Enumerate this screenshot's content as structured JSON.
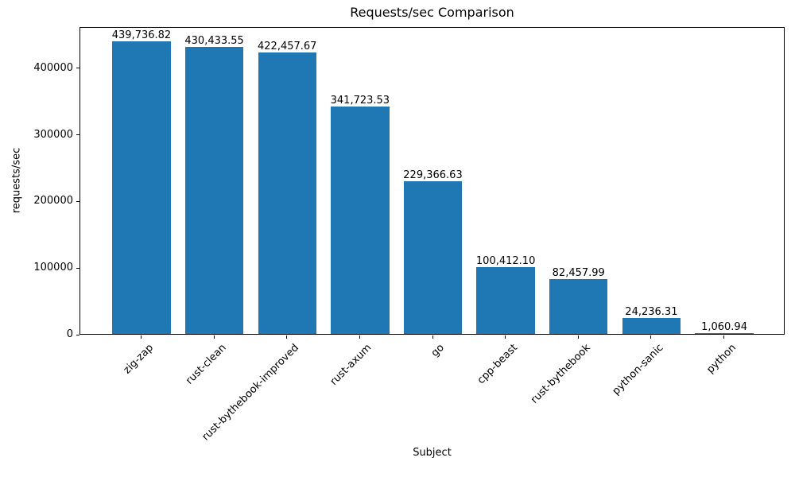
{
  "chart_data": {
    "type": "bar",
    "title": "Requests/sec Comparison",
    "xlabel": "Subject",
    "ylabel": "requests/sec",
    "categories": [
      "zig-zap",
      "rust-clean",
      "rust-bythebook-improved",
      "rust-axum",
      "go",
      "cpp-beast",
      "rust-bythebook",
      "python-sanic",
      "python"
    ],
    "values": [
      439736.82,
      430433.55,
      422457.67,
      341723.53,
      229366.63,
      100412.1,
      82457.99,
      24236.31,
      1060.94
    ],
    "value_labels": [
      "439,736.82",
      "430,433.55",
      "422,457.67",
      "341,723.53",
      "229,366.63",
      "100,412.10",
      "82,457.99",
      "24,236.31",
      "1,060.94"
    ],
    "ylim": [
      0,
      462000
    ],
    "yticks": [
      0,
      100000,
      200000,
      300000,
      400000
    ],
    "ytick_labels": [
      "0",
      "100000",
      "200000",
      "300000",
      "400000"
    ],
    "xtick_rotation_deg": 45,
    "bar_width_fraction": 0.8,
    "bar_color": "#1f77b4",
    "background_color": "#ffffff",
    "text_color": "#000000",
    "grid": false,
    "legend": null
  }
}
